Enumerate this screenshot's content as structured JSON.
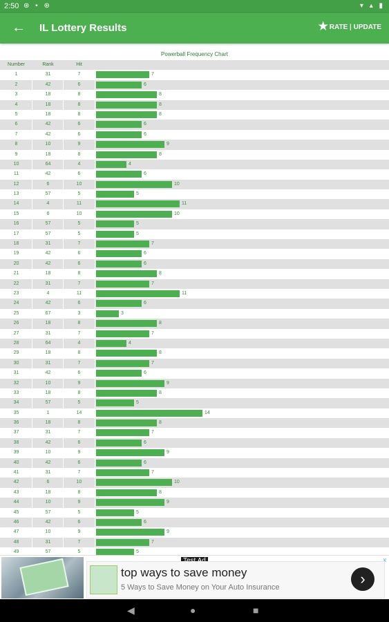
{
  "status": {
    "time": "2:50"
  },
  "app_bar": {
    "title": "IL Lottery Results",
    "rate_label": "RATE | UPDATE"
  },
  "chart_data": {
    "type": "bar",
    "title": "Powerball Frequency Chart",
    "columns": [
      "Number",
      "Rank",
      "Hit"
    ],
    "rows": [
      {
        "number": "1",
        "rank": "31",
        "hit": 7
      },
      {
        "number": "2",
        "rank": "42",
        "hit": 6
      },
      {
        "number": "3",
        "rank": "18",
        "hit": 8
      },
      {
        "number": "4",
        "rank": "18",
        "hit": 8
      },
      {
        "number": "5",
        "rank": "18",
        "hit": 8
      },
      {
        "number": "6",
        "rank": "42",
        "hit": 6
      },
      {
        "number": "7",
        "rank": "42",
        "hit": 6
      },
      {
        "number": "8",
        "rank": "10",
        "hit": 9
      },
      {
        "number": "9",
        "rank": "18",
        "hit": 8
      },
      {
        "number": "10",
        "rank": "64",
        "hit": 4
      },
      {
        "number": "11",
        "rank": "42",
        "hit": 6
      },
      {
        "number": "12",
        "rank": "6",
        "hit": 10
      },
      {
        "number": "13",
        "rank": "57",
        "hit": 5
      },
      {
        "number": "14",
        "rank": "4",
        "hit": 11
      },
      {
        "number": "15",
        "rank": "6",
        "hit": 10
      },
      {
        "number": "16",
        "rank": "57",
        "hit": 5
      },
      {
        "number": "17",
        "rank": "57",
        "hit": 5
      },
      {
        "number": "18",
        "rank": "31",
        "hit": 7
      },
      {
        "number": "19",
        "rank": "42",
        "hit": 6
      },
      {
        "number": "20",
        "rank": "42",
        "hit": 6
      },
      {
        "number": "21",
        "rank": "18",
        "hit": 8
      },
      {
        "number": "22",
        "rank": "31",
        "hit": 7
      },
      {
        "number": "23",
        "rank": "4",
        "hit": 11
      },
      {
        "number": "24",
        "rank": "42",
        "hit": 6
      },
      {
        "number": "25",
        "rank": "67",
        "hit": 3
      },
      {
        "number": "26",
        "rank": "18",
        "hit": 8
      },
      {
        "number": "27",
        "rank": "31",
        "hit": 7
      },
      {
        "number": "28",
        "rank": "64",
        "hit": 4
      },
      {
        "number": "29",
        "rank": "18",
        "hit": 8
      },
      {
        "number": "30",
        "rank": "31",
        "hit": 7
      },
      {
        "number": "31",
        "rank": "42",
        "hit": 6
      },
      {
        "number": "32",
        "rank": "10",
        "hit": 9
      },
      {
        "number": "33",
        "rank": "18",
        "hit": 8
      },
      {
        "number": "34",
        "rank": "57",
        "hit": 5
      },
      {
        "number": "35",
        "rank": "1",
        "hit": 14
      },
      {
        "number": "36",
        "rank": "18",
        "hit": 8
      },
      {
        "number": "37",
        "rank": "31",
        "hit": 7
      },
      {
        "number": "38",
        "rank": "42",
        "hit": 6
      },
      {
        "number": "39",
        "rank": "10",
        "hit": 9
      },
      {
        "number": "40",
        "rank": "42",
        "hit": 6
      },
      {
        "number": "41",
        "rank": "31",
        "hit": 7
      },
      {
        "number": "42",
        "rank": "6",
        "hit": 10
      },
      {
        "number": "43",
        "rank": "18",
        "hit": 8
      },
      {
        "number": "44",
        "rank": "10",
        "hit": 9
      },
      {
        "number": "45",
        "rank": "57",
        "hit": 5
      },
      {
        "number": "46",
        "rank": "42",
        "hit": 6
      },
      {
        "number": "47",
        "rank": "10",
        "hit": 9
      },
      {
        "number": "48",
        "rank": "31",
        "hit": 7
      },
      {
        "number": "49",
        "rank": "57",
        "hit": 5
      }
    ],
    "max_value": 14,
    "bar_color": "#4caf50"
  },
  "ad": {
    "tag": "Test Ad",
    "title": "top ways to save money",
    "subtitle": "5 Ways to Save Money on Your Auto Insurance",
    "close": "x",
    "cta_icon": "chevron-right-icon"
  },
  "colors": {
    "primary": "#4caf50",
    "status_bar": "#43a047",
    "text_green": "#388e3c"
  },
  "nav": {
    "back": "◀",
    "home": "●",
    "recents": "■"
  }
}
